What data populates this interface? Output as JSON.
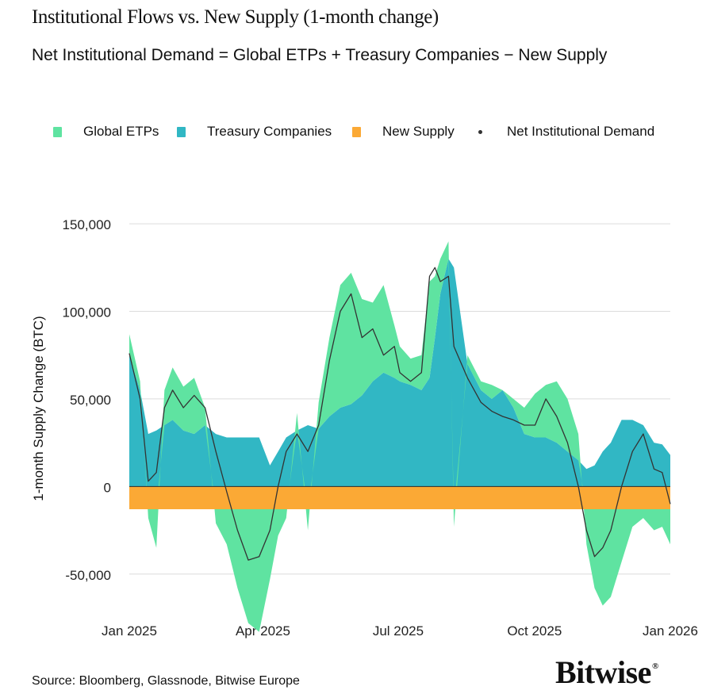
{
  "chart_data": {
    "type": "area",
    "title": "Institutional Flows vs. New Supply (1-month change)",
    "subtitle": "Net Institutional Demand = Global ETPs + Treasury Companies − New Supply",
    "ylabel": "1-month Supply Change (BTC)",
    "xlabel": "",
    "ylim": [
      -80000,
      160000
    ],
    "xlim": [
      0,
      1
    ],
    "yticks": [
      -50000,
      0,
      50000,
      100000,
      150000
    ],
    "ytick_labels": [
      "-50,000",
      "0",
      "50,000",
      "100,000",
      "150,000"
    ],
    "xticks": [
      0,
      0.247,
      0.497,
      0.749,
      1.0
    ],
    "xtick_labels": [
      "Jan 2025",
      "Apr 2025",
      "Jul 2025",
      "Oct 2025",
      "Jan 2026"
    ],
    "grid": true,
    "legend_position": "top",
    "legend": [
      {
        "label": "Global ETPs",
        "color": "#5fe3a1",
        "marker": "square"
      },
      {
        "label": "Treasury Companies",
        "color": "#31b7c4",
        "marker": "square"
      },
      {
        "label": "New Supply",
        "color": "#fba935",
        "marker": "square"
      },
      {
        "label": "Net Institutional Demand",
        "color": "#333333",
        "marker": "dot"
      }
    ],
    "x": [
      0.0,
      0.02,
      0.035,
      0.05,
      0.065,
      0.08,
      0.1,
      0.12,
      0.14,
      0.16,
      0.18,
      0.2,
      0.22,
      0.24,
      0.26,
      0.275,
      0.29,
      0.31,
      0.33,
      0.35,
      0.37,
      0.39,
      0.41,
      0.43,
      0.45,
      0.47,
      0.49,
      0.5,
      0.52,
      0.54,
      0.555,
      0.565,
      0.575,
      0.59,
      0.6,
      0.625,
      0.65,
      0.67,
      0.69,
      0.71,
      0.73,
      0.75,
      0.77,
      0.79,
      0.81,
      0.83,
      0.845,
      0.86,
      0.875,
      0.89,
      0.91,
      0.93,
      0.95,
      0.97,
      0.985,
      1.0
    ],
    "series": [
      {
        "name": "Treasury Companies",
        "color": "#31b7c4",
        "values": [
          75000,
          55000,
          30000,
          32000,
          35000,
          38000,
          32000,
          30000,
          35000,
          30000,
          28000,
          28000,
          28000,
          28000,
          12000,
          20000,
          28000,
          32000,
          35000,
          33000,
          40000,
          45000,
          47000,
          52000,
          60000,
          65000,
          62000,
          60000,
          58000,
          55000,
          62000,
          85000,
          110000,
          130000,
          125000,
          70000,
          55000,
          50000,
          55000,
          45000,
          30000,
          28000,
          28000,
          25000,
          20000,
          15000,
          10000,
          12000,
          20000,
          25000,
          38000,
          38000,
          35000,
          25000,
          24000,
          18000
        ]
      },
      {
        "name": "Global ETPs",
        "color": "#5fe3a1",
        "values": [
          12000,
          5000,
          -5000,
          -22000,
          20000,
          30000,
          25000,
          32000,
          10000,
          -8000,
          -20000,
          -45000,
          -65000,
          -70000,
          -40000,
          -15000,
          -5000,
          10000,
          -12000,
          15000,
          45000,
          70000,
          75000,
          55000,
          45000,
          50000,
          30000,
          20000,
          15000,
          20000,
          55000,
          35000,
          20000,
          10000,
          -10000,
          5000,
          5000,
          8000,
          0,
          5000,
          15000,
          25000,
          30000,
          35000,
          30000,
          15000,
          -20000,
          -45000,
          -55000,
          -50000,
          -30000,
          -10000,
          -5000,
          -12000,
          -10000,
          -20000
        ]
      },
      {
        "name": "New Supply",
        "color": "#fba935",
        "values": [
          -13000,
          -13000,
          -13000,
          -13000,
          -13000,
          -13000,
          -13000,
          -13000,
          -13000,
          -13000,
          -13000,
          -13000,
          -13000,
          -13000,
          -13000,
          -13000,
          -13000,
          -13000,
          -13000,
          -13000,
          -13000,
          -13000,
          -13000,
          -13000,
          -13000,
          -13000,
          -13000,
          -13000,
          -13000,
          -13000,
          -13000,
          -13000,
          -13000,
          -13000,
          -13000,
          -13000,
          -13000,
          -13000,
          -13000,
          -13000,
          -13000,
          -13000,
          -13000,
          -13000,
          -13000,
          -13000,
          -13000,
          -13000,
          -13000,
          -13000,
          -13000,
          -13000,
          -13000,
          -13000,
          -13000,
          -13000
        ]
      },
      {
        "name": "Net Institutional Demand",
        "color": "#333333",
        "values": [
          76000,
          50000,
          3000,
          8000,
          45000,
          55000,
          45000,
          52000,
          45000,
          20000,
          -3000,
          -25000,
          -42000,
          -40000,
          -25000,
          0,
          20000,
          30000,
          20000,
          35000,
          72000,
          100000,
          110000,
          85000,
          90000,
          75000,
          80000,
          65000,
          60000,
          65000,
          120000,
          125000,
          117000,
          120000,
          80000,
          62000,
          48000,
          43000,
          40000,
          38000,
          35000,
          35000,
          50000,
          40000,
          25000,
          0,
          -25000,
          -40000,
          -35000,
          -25000,
          0,
          20000,
          30000,
          10000,
          8000,
          -10000
        ]
      }
    ],
    "source_note": "Source: Bloomberg, Glassnode, Bitwise Europe",
    "brand": "Bitwise"
  }
}
